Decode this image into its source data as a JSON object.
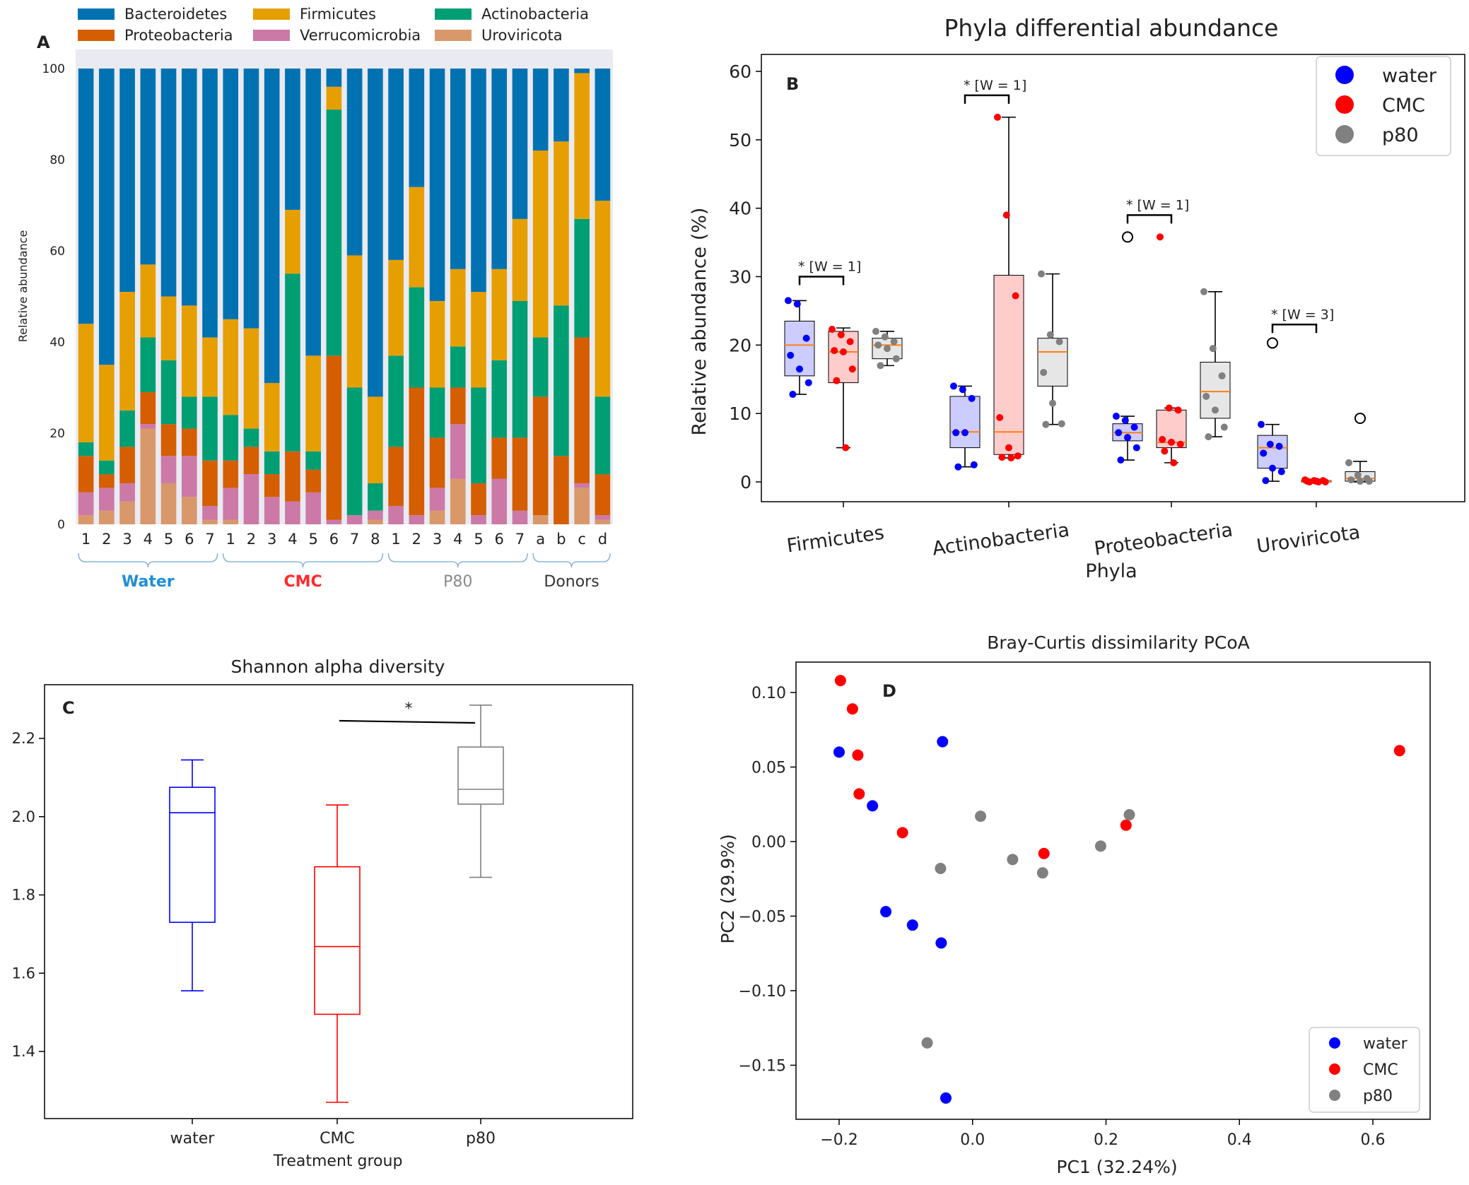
{
  "chart_data": [
    {
      "panel": "A",
      "type": "bar",
      "stacked": true,
      "title": "",
      "ylabel": "Relative abundance",
      "ylim": [
        0,
        100
      ],
      "yticks": [
        "0",
        "20",
        "40",
        "60",
        "80",
        "100"
      ],
      "legend": [
        {
          "name": "Bacteroidetes",
          "color": "#0072b2"
        },
        {
          "name": "Firmicutes",
          "color": "#e69f00"
        },
        {
          "name": "Actinobacteria",
          "color": "#009e73"
        },
        {
          "name": "Proteobacteria",
          "color": "#d55e00"
        },
        {
          "name": "Verrucomicrobia",
          "color": "#cc79a7"
        },
        {
          "name": "Uroviricota",
          "color": "#d9986a"
        }
      ],
      "stack_order": [
        "Uroviricota",
        "Verrucomicrobia",
        "Proteobacteria",
        "Actinobacteria",
        "Firmicutes",
        "Bacteroidetes"
      ],
      "categories": [
        "1",
        "2",
        "3",
        "4",
        "5",
        "6",
        "7",
        "1",
        "2",
        "3",
        "4",
        "5",
        "6",
        "7",
        "8",
        "1",
        "2",
        "3",
        "4",
        "5",
        "6",
        "7",
        "a",
        "b",
        "c",
        "d"
      ],
      "series": [
        {
          "name": "Uroviricota",
          "values": [
            2,
            3,
            5,
            21,
            9,
            6,
            1,
            1,
            0,
            0,
            0,
            0,
            0,
            0,
            1,
            0,
            0,
            3,
            10,
            0,
            0,
            0,
            2,
            0,
            8,
            1
          ]
        },
        {
          "name": "Verrucomicrobia",
          "values": [
            5,
            5,
            4,
            1,
            6,
            9,
            3,
            7,
            11,
            6,
            5,
            7,
            1,
            2,
            2,
            4,
            2,
            5,
            12,
            2,
            10,
            3,
            0,
            0,
            1,
            1
          ]
        },
        {
          "name": "Proteobacteria",
          "values": [
            8,
            3,
            8,
            7,
            7,
            6,
            10,
            6,
            6,
            5,
            11,
            5,
            36,
            0,
            0,
            13,
            28,
            11,
            8,
            7,
            9,
            16,
            26,
            15,
            32,
            9
          ]
        },
        {
          "name": "Actinobacteria",
          "values": [
            3,
            3,
            8,
            12,
            14,
            7,
            14,
            10,
            4,
            5,
            39,
            4,
            54,
            28,
            6,
            20,
            22,
            11,
            9,
            21,
            17,
            30,
            13,
            33,
            26,
            17
          ]
        },
        {
          "name": "Firmicutes",
          "values": [
            26,
            21,
            26,
            16,
            14,
            20,
            13,
            21,
            22,
            15,
            14,
            21,
            5,
            29,
            19,
            21,
            22,
            19,
            17,
            21,
            20,
            18,
            41,
            36,
            32,
            43
          ]
        },
        {
          "name": "Bacteroidetes",
          "values": [
            56,
            65,
            49,
            43,
            50,
            52,
            59,
            55,
            57,
            69,
            31,
            63,
            4,
            41,
            72,
            42,
            26,
            51,
            44,
            49,
            44,
            33,
            18,
            16,
            1,
            29
          ]
        }
      ],
      "groups": [
        {
          "label": "Water",
          "color": "#1f8fd6",
          "first": 0,
          "last": 6
        },
        {
          "label": "CMC",
          "color": "#ff2a2a",
          "first": 7,
          "last": 14
        },
        {
          "label": "P80",
          "color": "#8a8a8a",
          "first": 15,
          "last": 21
        },
        {
          "label": "Donors",
          "color": "#333333",
          "first": 22,
          "last": 25
        }
      ]
    },
    {
      "panel": "B",
      "type": "box",
      "title": "Phyla differential abundance",
      "xlabel": "Phyla",
      "ylabel": "Relative abundance (%)",
      "ylim": [
        -3,
        63
      ],
      "yticks": [
        0,
        10,
        20,
        30,
        40,
        50,
        60
      ],
      "categories": [
        "Firmicutes",
        "Actinobacteria",
        "Proteobacteria",
        "Uroviricota"
      ],
      "legend": [
        {
          "name": "water",
          "color": "#0000ff"
        },
        {
          "name": "CMC",
          "color": "#ff0000"
        },
        {
          "name": "p80",
          "color": "#808080"
        }
      ],
      "annotations": [
        "* [W = 1]",
        "* [W = 1]",
        "* [W = 1]",
        "* [W = 3]"
      ],
      "series": [
        {
          "name": "water",
          "boxes": [
            {
              "min": 12.8,
              "q1": 15.5,
              "median": 20,
              "q3": 23.5,
              "max": 26.5,
              "points": [
                26.5,
                26,
                21,
                18.5,
                16.5,
                14.5,
                12.8
              ],
              "outliers": []
            },
            {
              "min": 2.2,
              "q1": 5,
              "median": 7.3,
              "q3": 12.5,
              "max": 14,
              "points": [
                14,
                13.5,
                12.2,
                7.2,
                7.2,
                2.5,
                2.2
              ],
              "outliers": []
            },
            {
              "min": 3.2,
              "q1": 6,
              "median": 7.2,
              "q3": 8.5,
              "max": 9.6,
              "points": [
                9.6,
                9,
                8,
                7.2,
                6.5,
                5,
                3.2
              ],
              "outliers": [
                35.8
              ]
            },
            {
              "min": 0.1,
              "q1": 2,
              "median": 5,
              "q3": 6.8,
              "max": 8.4,
              "points": [
                8.4,
                5.5,
                5.2,
                4.2,
                2,
                1.5,
                0.2
              ],
              "outliers": [
                20.3
              ]
            }
          ]
        },
        {
          "name": "CMC",
          "boxes": [
            {
              "min": 5,
              "q1": 14.5,
              "median": 19,
              "q3": 22,
              "max": 22.5,
              "points": [
                22.3,
                21.5,
                20.5,
                19.2,
                19,
                16.5,
                14.8,
                5
              ]
            },
            {
              "min": 3.5,
              "q1": 4,
              "median": 7.3,
              "q3": 30.2,
              "max": 53.3,
              "points": [
                53.3,
                39,
                27.2,
                9.4,
                5,
                3.8,
                3.6,
                3.5
              ]
            },
            {
              "min": 2.8,
              "q1": 5,
              "median": 5.8,
              "q3": 10.5,
              "max": 10.8,
              "points": [
                35.8,
                10.8,
                10.5,
                6.2,
                5.8,
                5.5,
                4.5,
                2.8
              ]
            },
            {
              "min": 0,
              "q1": 0,
              "median": 0.1,
              "q3": 0.2,
              "max": 0.3,
              "points": [
                0.3,
                0.2,
                0.2,
                0.1,
                0.1,
                0,
                0,
                0
              ]
            }
          ]
        },
        {
          "name": "p80",
          "boxes": [
            {
              "min": 17,
              "q1": 18,
              "median": 20,
              "q3": 21,
              "max": 22,
              "points": [
                22,
                21.2,
                20.5,
                20,
                19.5,
                18,
                17
              ]
            },
            {
              "min": 8.4,
              "q1": 14,
              "median": 19,
              "q3": 21,
              "max": 30.4,
              "points": [
                30.4,
                21.5,
                20.5,
                16,
                11.5,
                8.5,
                8.4
              ]
            },
            {
              "min": 6.6,
              "q1": 9.3,
              "median": 13.2,
              "q3": 17.5,
              "max": 27.8,
              "points": [
                27.8,
                19.5,
                15.5,
                12.5,
                10.5,
                8,
                6.6
              ]
            },
            {
              "min": 0,
              "q1": 0.1,
              "median": 0.5,
              "q3": 1.5,
              "max": 3,
              "points": [
                2.8,
                1,
                0.5,
                0.3,
                0.1,
                0.1
              ],
              "outliers": [
                9.3
              ]
            }
          ]
        }
      ]
    },
    {
      "panel": "C",
      "type": "box",
      "title": "Shannon alpha diversity",
      "xlabel": "Treatment group",
      "ylabel": "",
      "ylim": [
        1.18,
        2.32
      ],
      "yticks": [
        "1.4",
        "1.6",
        "1.8",
        "2.0",
        "2.2"
      ],
      "categories": [
        "water",
        "CMC",
        "p80"
      ],
      "boxes": [
        {
          "name": "water",
          "color": "#0000ff",
          "min": 1.555,
          "q1": 1.73,
          "median": 2.01,
          "q3": 2.075,
          "max": 2.145
        },
        {
          "name": "CMC",
          "color": "#ff0000",
          "min": 1.27,
          "q1": 1.495,
          "median": 1.668,
          "q3": 1.872,
          "max": 2.03
        },
        {
          "name": "p80",
          "color": "#808080",
          "min": 1.845,
          "q1": 2.032,
          "median": 2.07,
          "q3": 2.178,
          "max": 2.285
        }
      ],
      "annotation": "*"
    },
    {
      "panel": "D",
      "type": "scatter",
      "title": "Bray-Curtis dissimilarity PCoA",
      "xlabel": "PC1 (32.24%)",
      "ylabel": "PC2 (29.9%)",
      "xlim": [
        -0.245,
        0.675
      ],
      "ylim": [
        -0.185,
        0.123
      ],
      "xticks": [
        "-0.2",
        "0.0",
        "0.2",
        "0.4",
        "0.6"
      ],
      "yticks": [
        "0.10",
        "0.05",
        "0.00",
        "-0.05",
        "-0.10",
        "-0.15"
      ],
      "legend_position": "bottom-right",
      "series": [
        {
          "name": "water",
          "color": "#0000ff",
          "points": [
            [
              -0.2,
              0.06
            ],
            [
              -0.045,
              0.067
            ],
            [
              -0.15,
              0.024
            ],
            [
              -0.13,
              -0.047
            ],
            [
              -0.09,
              -0.056
            ],
            [
              -0.047,
              -0.068
            ],
            [
              -0.04,
              -0.172
            ]
          ]
        },
        {
          "name": "CMC",
          "color": "#ff0000",
          "points": [
            [
              -0.198,
              0.108
            ],
            [
              -0.18,
              0.089
            ],
            [
              -0.172,
              0.058
            ],
            [
              -0.17,
              0.032
            ],
            [
              -0.105,
              0.006
            ],
            [
              0.107,
              -0.008
            ],
            [
              0.23,
              0.011
            ],
            [
              0.64,
              0.061
            ]
          ]
        },
        {
          "name": "p80",
          "color": "#808080",
          "points": [
            [
              0.012,
              0.017
            ],
            [
              -0.048,
              -0.018
            ],
            [
              0.06,
              -0.012
            ],
            [
              0.105,
              -0.021
            ],
            [
              0.192,
              -0.003
            ],
            [
              0.235,
              0.018
            ],
            [
              -0.068,
              -0.135
            ]
          ]
        }
      ]
    }
  ],
  "panel_labels": {
    "a": "A",
    "b": "B",
    "c": "C",
    "d": "D"
  }
}
